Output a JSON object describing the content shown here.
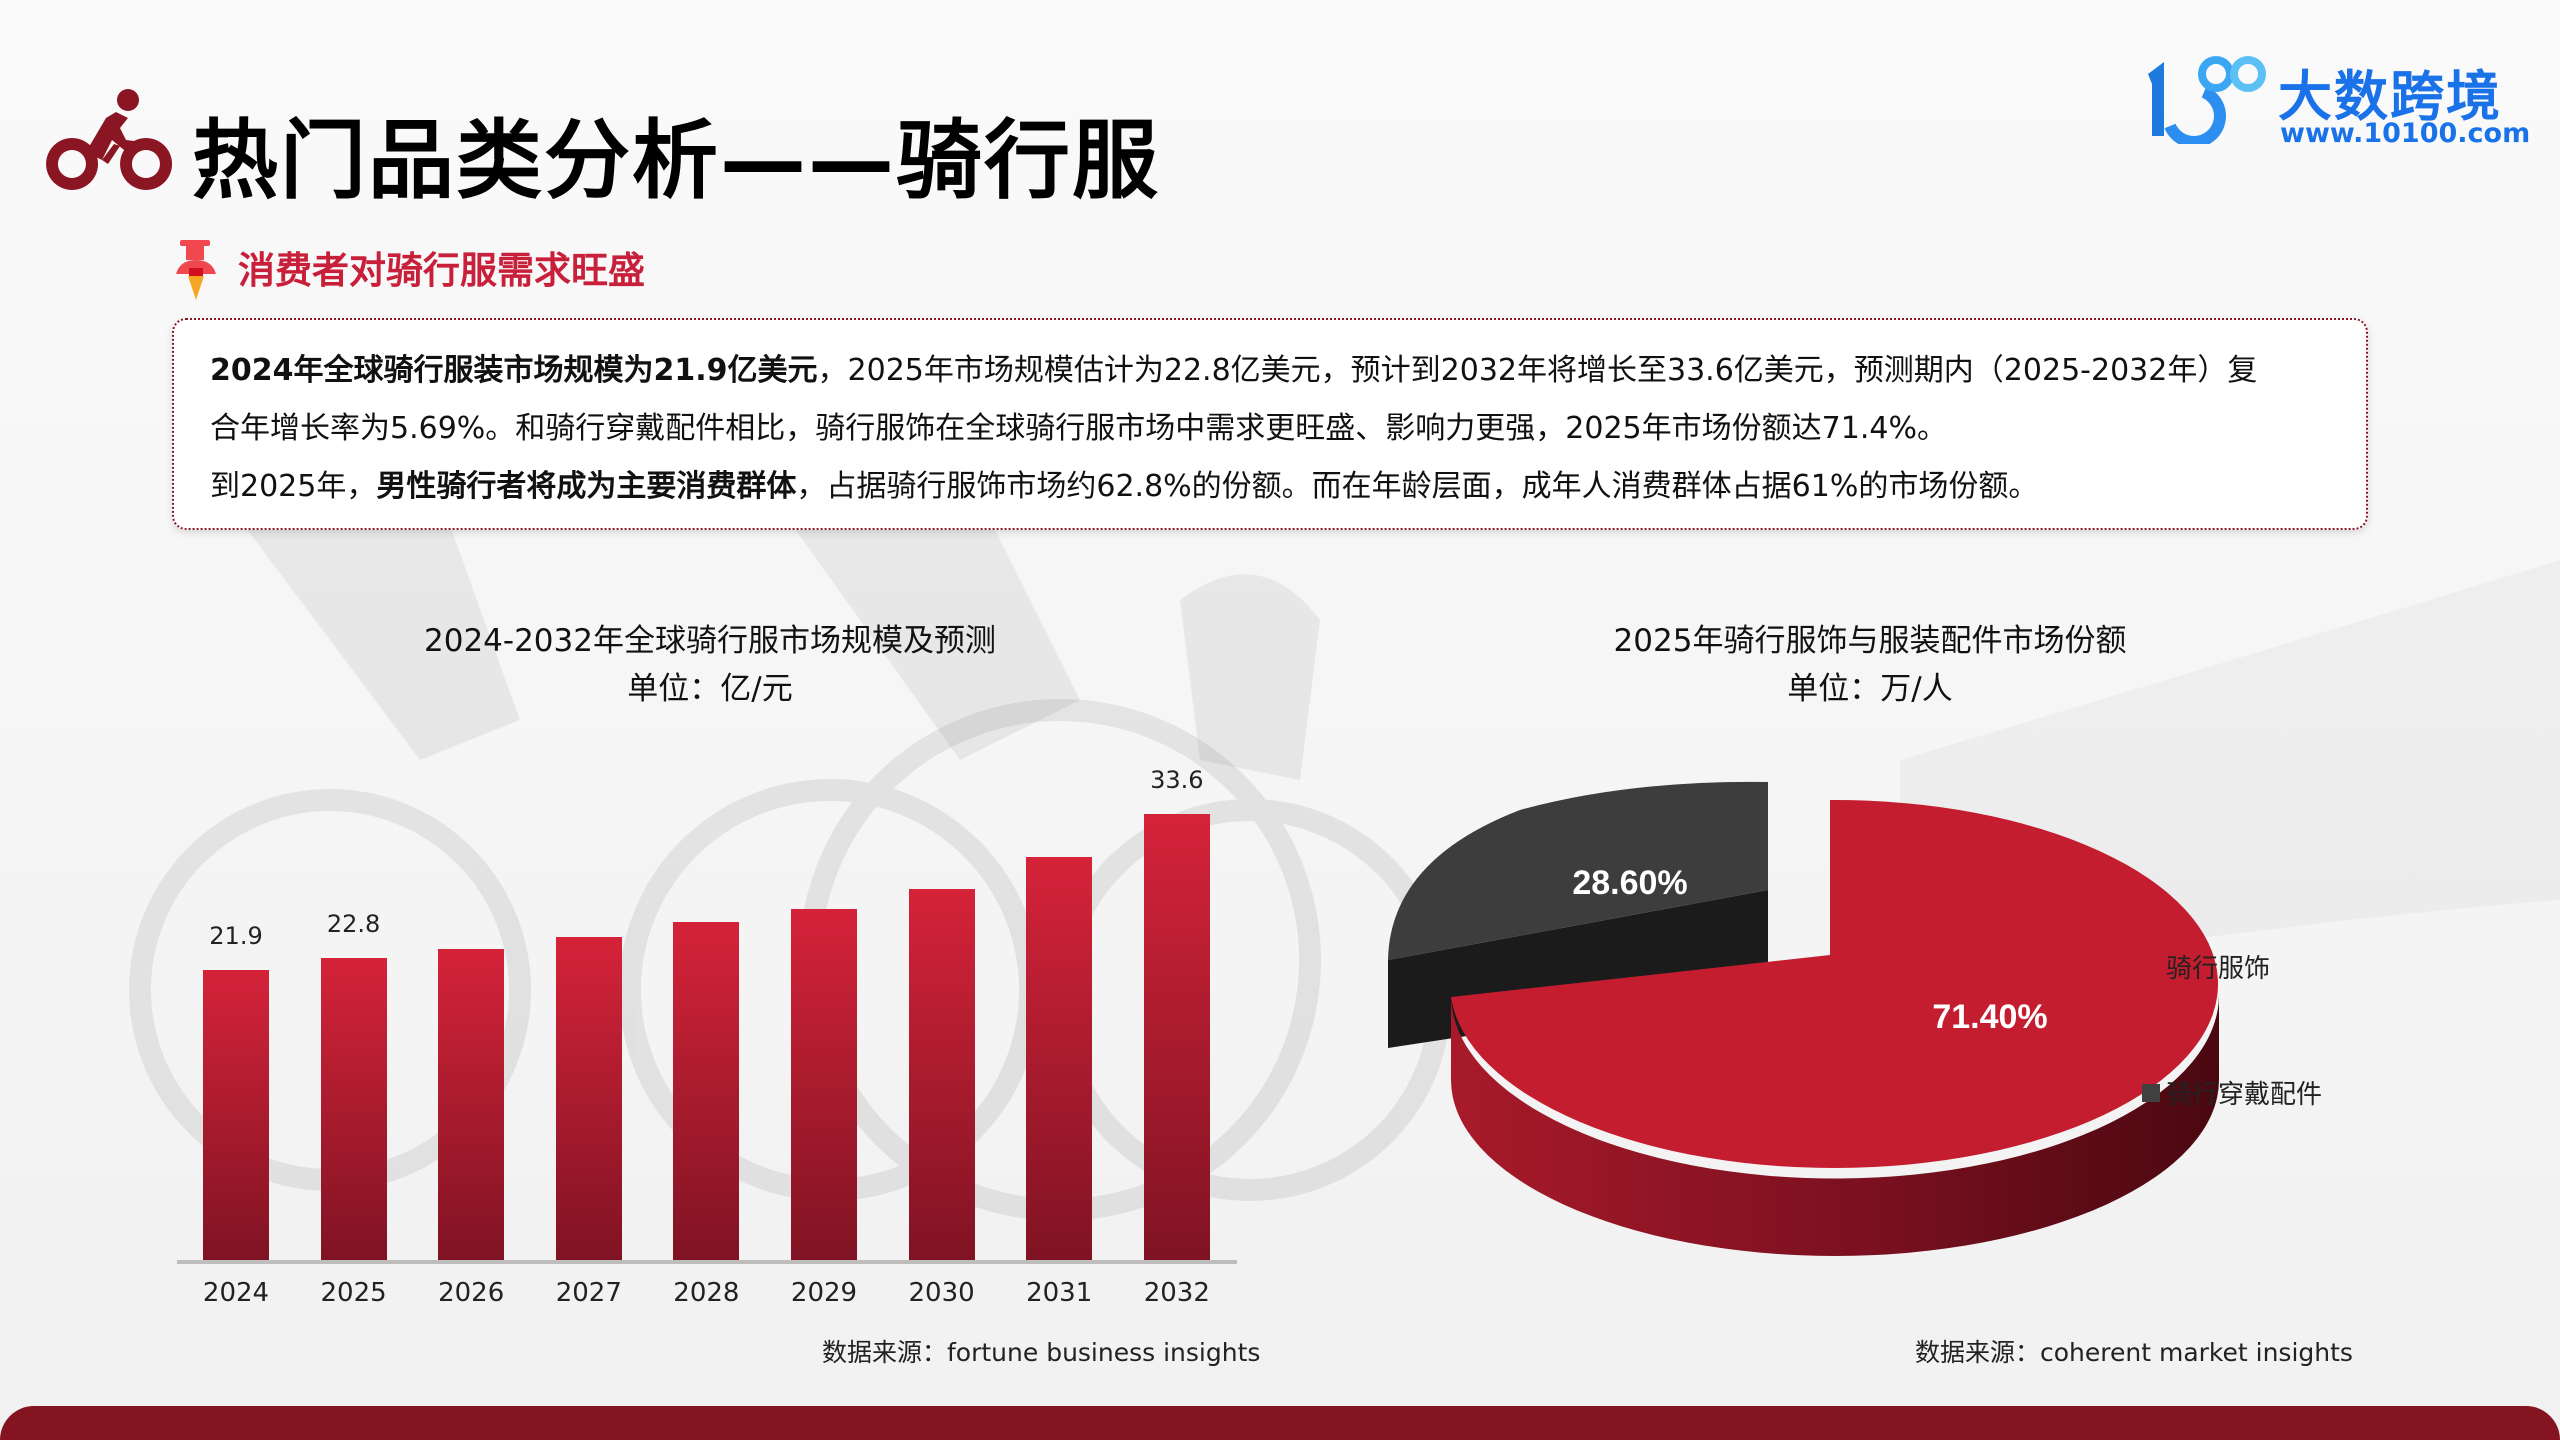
{
  "header": {
    "title": "热门品类分析——骑行服",
    "logo_text": "大数跨境",
    "logo_url": "www.10100.com",
    "logo_mark": "10100"
  },
  "section": {
    "heading": "消费者对骑行服需求旺盛",
    "icon": "pushpin-icon"
  },
  "summary": {
    "line1_bold": "2024年全球骑行服装市场规模为21.9亿美元",
    "line1_rest": "，2025年市场规模估计为22.8亿美元，预计到2032年将增长至33.6亿美元，预测期内（2025-2032年）复",
    "line2": "合年增长率为5.69%。和骑行穿戴配件相比，骑行服饰在全球骑行服市场中需求更旺盛、影响力更强，2025年市场份额达71.4%。",
    "line3_pre": "到2025年，",
    "line3_bold": "男性骑行者将成为主要消费群体",
    "line3_rest": "，占据骑行服饰市场约62.8%的份额。而在年龄层面，成年人消费群体占据61%的市场份额。"
  },
  "bar_chart": {
    "title": "2024-2032年全球骑行服市场规模及预测",
    "unit": "单位：亿/元",
    "source": "数据来源：fortune business insights",
    "bar_color_top": "#d52339",
    "bar_color_bottom": "#7f1323"
  },
  "pie_chart": {
    "title": "2025年骑行服饰与服装配件市场份额",
    "unit": "单位：万/人",
    "source": "数据来源：coherent market insights",
    "label_red": "71.40%",
    "label_gray": "28.60%",
    "legend": [
      {
        "label": "骑行服饰",
        "color": "#c51d30"
      },
      {
        "label": "骑行穿戴配件",
        "color": "#404040"
      }
    ]
  },
  "chart_data": [
    {
      "type": "bar",
      "title": "2024-2032年全球骑行服市场规模及预测",
      "subtitle": "单位：亿/元",
      "categories": [
        "2024",
        "2025",
        "2026",
        "2027",
        "2028",
        "2029",
        "2030",
        "2031",
        "2032"
      ],
      "values": [
        21.9,
        22.8,
        23.5,
        24.4,
        25.5,
        26.5,
        28.0,
        30.4,
        33.6
      ],
      "data_labels": {
        "2024": "21.9",
        "2025": "22.8",
        "2032": "33.6"
      },
      "xlabel": "",
      "ylabel": "",
      "ylim": [
        0,
        36
      ],
      "grid": false,
      "legend": null,
      "source": "数据来源：fortune business insights"
    },
    {
      "type": "pie",
      "title": "2025年骑行服饰与服装配件市场份额",
      "subtitle": "单位：万/人",
      "categories": [
        "骑行服饰",
        "骑行穿戴配件"
      ],
      "values": [
        71.4,
        28.6
      ],
      "labels": [
        "71.40%",
        "28.60%"
      ],
      "colors": [
        "#c51d30",
        "#404040"
      ],
      "style": "3D, exploded",
      "legend_position": "right",
      "source": "数据来源：coherent market insights"
    }
  ]
}
